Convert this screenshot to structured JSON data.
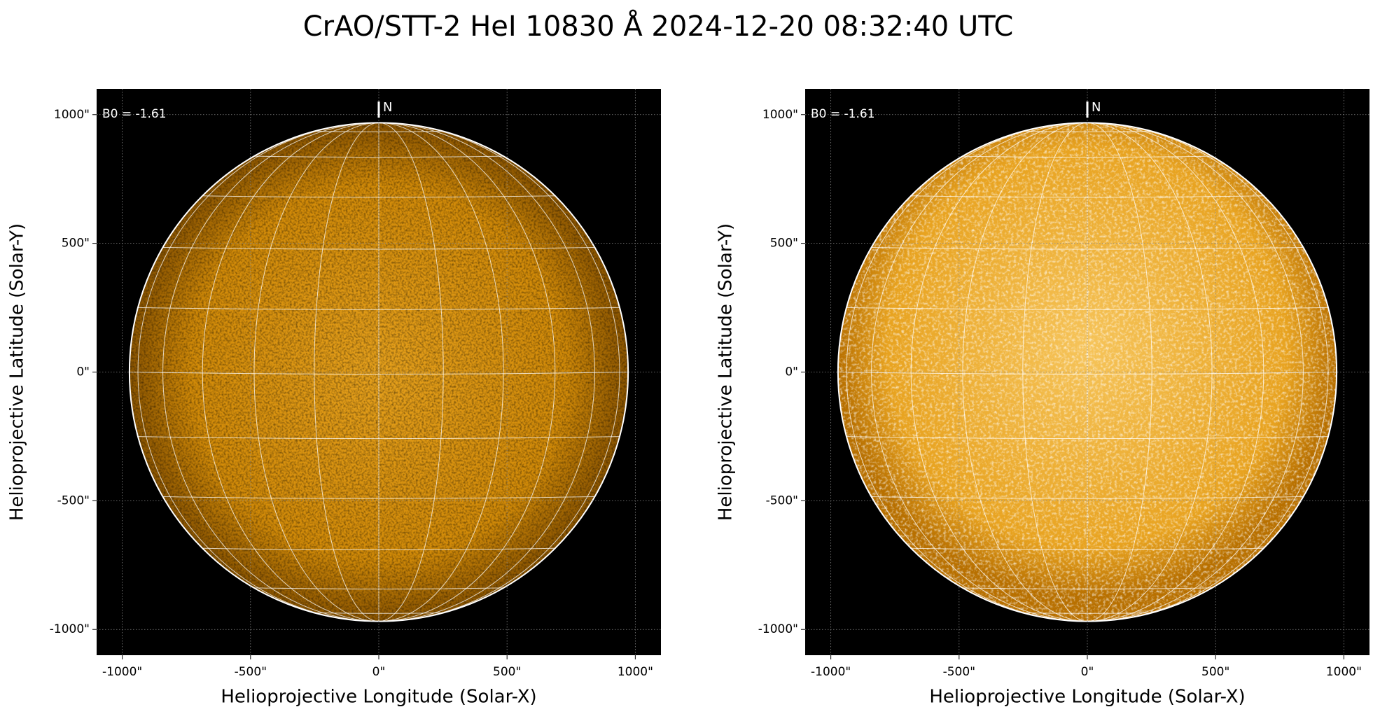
{
  "title": "CrAO/STT-2 HeI 10830 Å 2024-12-20 08:32:40 UTC",
  "chart_data": [
    {
      "type": "image",
      "annotation": "B0 = -1.61",
      "north": "N",
      "xlabel": "Helioprojective Longitude (Solar-X)",
      "ylabel": "Helioprojective Latitude (Solar-Y)",
      "xlim": [
        -1100,
        1100
      ],
      "ylim": [
        -1100,
        1100
      ],
      "xticks": [
        {
          "value": -1000,
          "label": "-1000\""
        },
        {
          "value": -500,
          "label": "-500\""
        },
        {
          "value": 0,
          "label": "0\""
        },
        {
          "value": 500,
          "label": "500\""
        },
        {
          "value": 1000,
          "label": "1000\""
        }
      ],
      "yticks": [
        {
          "value": -1000,
          "label": "-1000\""
        },
        {
          "value": -500,
          "label": "-500\""
        },
        {
          "value": 0,
          "label": "0\""
        },
        {
          "value": 500,
          "label": "500\""
        },
        {
          "value": 1000,
          "label": "1000\""
        }
      ]
    },
    {
      "type": "image",
      "annotation": "B0 = -1.61",
      "north": "N",
      "xlabel": "Helioprojective Longitude (Solar-X)",
      "ylabel": "Helioprojective Latitude (Solar-Y)",
      "xlim": [
        -1100,
        1100
      ],
      "ylim": [
        -1100,
        1100
      ],
      "xticks": [
        {
          "value": -1000,
          "label": "-1000\""
        },
        {
          "value": -500,
          "label": "-500\""
        },
        {
          "value": 0,
          "label": "0\""
        },
        {
          "value": 500,
          "label": "500\""
        },
        {
          "value": 1000,
          "label": "1000\""
        }
      ],
      "yticks": [
        {
          "value": -1000,
          "label": "-1000\""
        },
        {
          "value": -500,
          "label": "-500\""
        },
        {
          "value": 0,
          "label": "0\""
        },
        {
          "value": 500,
          "label": "500\""
        },
        {
          "value": 1000,
          "label": "1000\""
        }
      ]
    }
  ]
}
